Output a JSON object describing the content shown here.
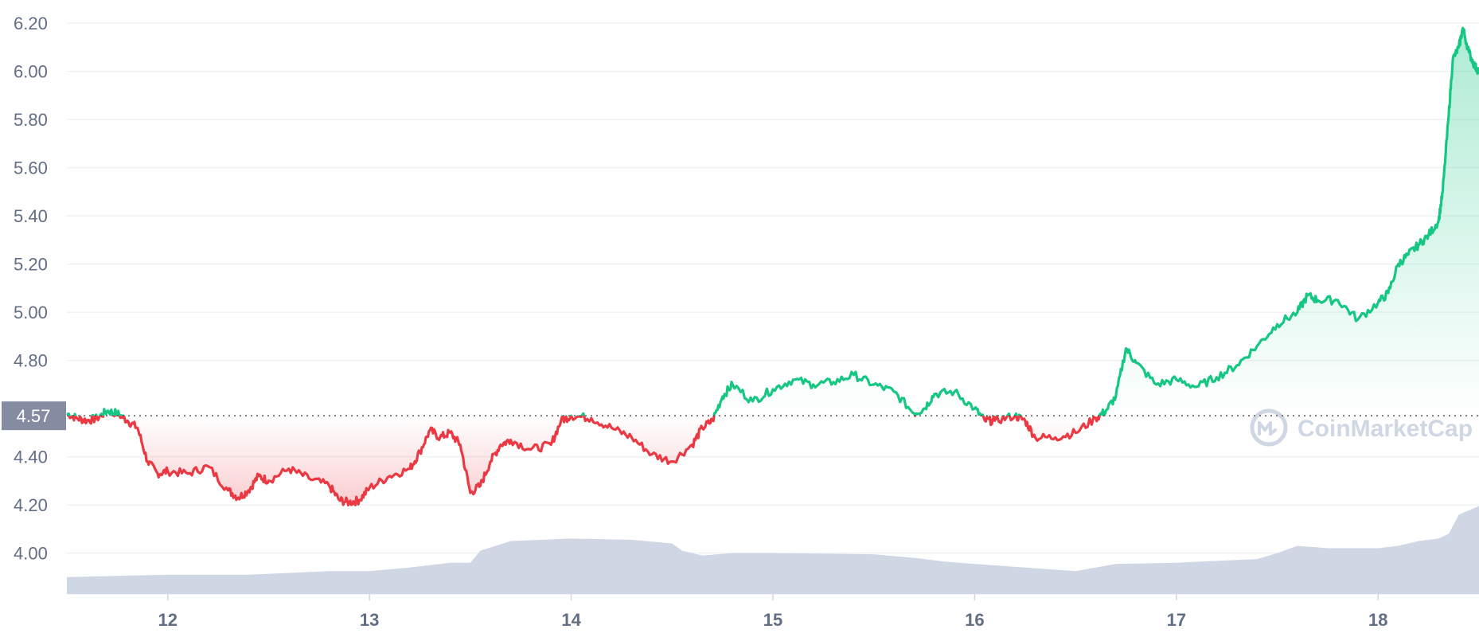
{
  "chart_data": {
    "type": "line",
    "y_ticks": [
      "6.20",
      "6.00",
      "5.80",
      "5.60",
      "5.40",
      "5.20",
      "5.00",
      "4.80",
      "4.40",
      "4.20",
      "4.00"
    ],
    "x_ticks": [
      "12",
      "13",
      "14",
      "15",
      "16",
      "17",
      "18"
    ],
    "ylim": [
      3.83,
      6.27
    ],
    "xlim": [
      11.5,
      18.5
    ],
    "reference_price": "4.57",
    "reference_value": 4.57,
    "watermark": "CoinMarketCap",
    "grid": true,
    "colors": {
      "up": "#16c784",
      "down": "#ea3943",
      "volume": "#cfd6e4",
      "badge": "#858ca2",
      "axis_text": "#616e85"
    },
    "price": {
      "x": [
        11.5,
        11.55,
        11.6,
        11.65,
        11.7,
        11.75,
        11.8,
        11.85,
        11.9,
        11.95,
        12.0,
        12.1,
        12.2,
        12.3,
        12.35,
        12.4,
        12.45,
        12.5,
        12.6,
        12.7,
        12.8,
        12.85,
        12.9,
        12.95,
        13.0,
        13.1,
        13.2,
        13.25,
        13.3,
        13.35,
        13.4,
        13.45,
        13.5,
        13.55,
        13.6,
        13.65,
        13.7,
        13.8,
        13.9,
        13.95,
        14.0,
        14.1,
        14.2,
        14.3,
        14.4,
        14.5,
        14.6,
        14.65,
        14.7,
        14.75,
        14.8,
        14.9,
        15.0,
        15.1,
        15.2,
        15.3,
        15.4,
        15.5,
        15.6,
        15.7,
        15.75,
        15.8,
        15.9,
        16.0,
        16.05,
        16.1,
        16.2,
        16.25,
        16.3,
        16.4,
        16.5,
        16.6,
        16.65,
        16.7,
        16.75,
        16.8,
        16.9,
        17.0,
        17.1,
        17.2,
        17.3,
        17.4,
        17.5,
        17.6,
        17.65,
        17.7,
        17.8,
        17.9,
        18.0,
        18.05,
        18.1,
        18.15,
        18.2,
        18.25,
        18.3,
        18.32,
        18.35,
        18.37,
        18.4,
        18.42,
        18.45,
        18.48,
        18.5
      ],
      "y": [
        4.58,
        4.56,
        4.55,
        4.56,
        4.59,
        4.58,
        4.55,
        4.52,
        4.38,
        4.33,
        4.34,
        4.33,
        4.36,
        4.26,
        4.23,
        4.26,
        4.32,
        4.3,
        4.35,
        4.31,
        4.28,
        4.22,
        4.21,
        4.22,
        4.27,
        4.32,
        4.35,
        4.42,
        4.51,
        4.48,
        4.5,
        4.45,
        4.25,
        4.28,
        4.38,
        4.45,
        4.47,
        4.43,
        4.45,
        4.55,
        4.57,
        4.56,
        4.52,
        4.48,
        4.41,
        4.38,
        4.45,
        4.52,
        4.55,
        4.65,
        4.7,
        4.63,
        4.68,
        4.72,
        4.7,
        4.71,
        4.74,
        4.7,
        4.67,
        4.58,
        4.6,
        4.66,
        4.67,
        4.6,
        4.55,
        4.55,
        4.57,
        4.55,
        4.48,
        4.48,
        4.5,
        4.56,
        4.59,
        4.65,
        4.85,
        4.79,
        4.7,
        4.72,
        4.69,
        4.73,
        4.78,
        4.86,
        4.95,
        5.0,
        5.07,
        5.05,
        5.05,
        4.97,
        5.04,
        5.08,
        5.2,
        5.24,
        5.28,
        5.32,
        5.38,
        5.5,
        5.82,
        6.05,
        6.1,
        6.18,
        6.08,
        6.02,
        6.0
      ]
    },
    "volume": {
      "x": [
        11.5,
        12.0,
        12.4,
        12.8,
        13.0,
        13.2,
        13.4,
        13.5,
        13.55,
        13.7,
        14.0,
        14.3,
        14.5,
        14.55,
        14.65,
        14.8,
        15.0,
        15.5,
        15.7,
        15.85,
        16.0,
        16.5,
        16.6,
        16.7,
        17.0,
        17.4,
        17.5,
        17.6,
        17.75,
        18.0,
        18.1,
        18.2,
        18.3,
        18.35,
        18.4,
        18.5
      ],
      "y": [
        3.9,
        3.91,
        3.91,
        3.925,
        3.925,
        3.94,
        3.96,
        3.96,
        4.01,
        4.05,
        4.06,
        4.055,
        4.04,
        4.01,
        3.99,
        4.0,
        4.0,
        3.995,
        3.98,
        3.965,
        3.955,
        3.925,
        3.94,
        3.955,
        3.96,
        3.975,
        4.0,
        4.03,
        4.02,
        4.02,
        4.03,
        4.05,
        4.06,
        4.08,
        4.16,
        4.195
      ]
    }
  }
}
